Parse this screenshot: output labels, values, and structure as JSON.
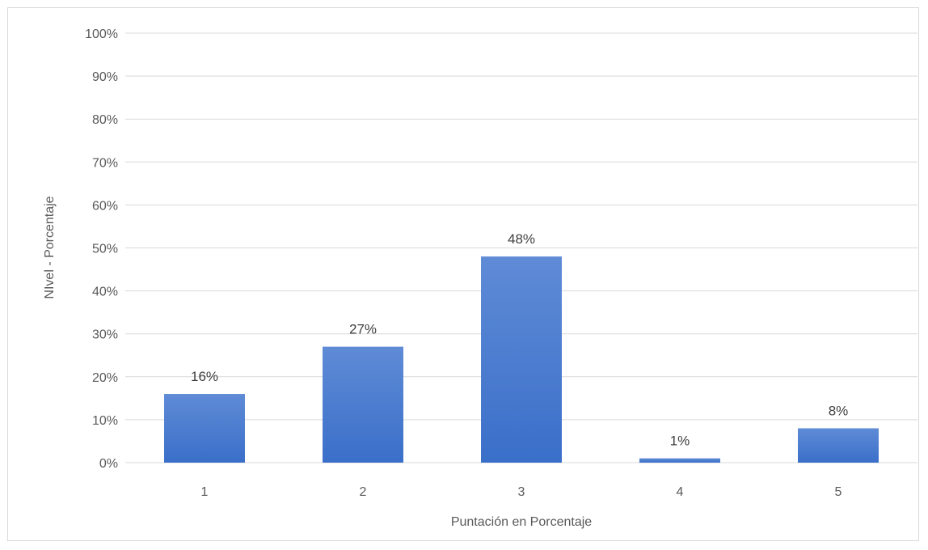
{
  "chart_data": {
    "type": "bar",
    "title": "",
    "xlabel": "Puntación en Porcentaje",
    "ylabel": "NIvel - Porcentaje",
    "categories": [
      "1",
      "2",
      "3",
      "4",
      "5"
    ],
    "values": [
      16,
      27,
      48,
      1,
      8
    ],
    "value_labels": [
      "16%",
      "27%",
      "48%",
      "1%",
      "8%"
    ],
    "ylim": [
      0,
      100
    ],
    "yticks": [
      0,
      10,
      20,
      30,
      40,
      50,
      60,
      70,
      80,
      90,
      100
    ],
    "ytick_labels": [
      "0%",
      "10%",
      "20%",
      "30%",
      "40%",
      "50%",
      "60%",
      "70%",
      "80%",
      "90%",
      "100%"
    ],
    "grid": true,
    "legend": "none",
    "bar_color": "#3a6fc9",
    "bar_color_light": "#5f8bd6",
    "grid_color": "#d9d9d9"
  }
}
